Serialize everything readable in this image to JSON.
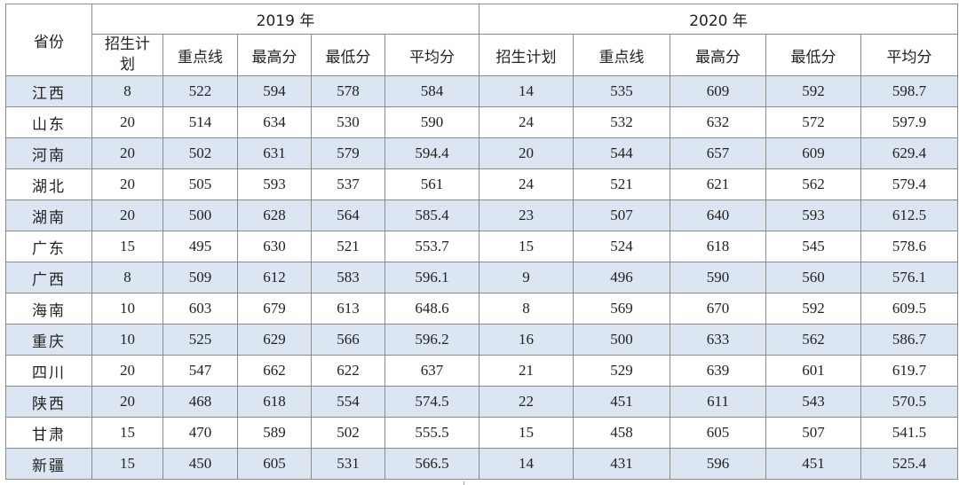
{
  "table": {
    "province_header": "省份",
    "years": [
      "2019 年",
      "2020 年"
    ],
    "columns_2019": [
      "招生计划",
      "重点线",
      "最高分",
      "最低分",
      "平均分"
    ],
    "columns_2020": [
      "招生计划",
      "重点线",
      "最高分",
      "最低分",
      "平均分"
    ],
    "row_shading_color": "#dce6f2",
    "rows": [
      {
        "province": "江西",
        "y2019": [
          "8",
          "522",
          "594",
          "578",
          "584"
        ],
        "y2020": [
          "14",
          "535",
          "609",
          "592",
          "598.7"
        ]
      },
      {
        "province": "山东",
        "y2019": [
          "20",
          "514",
          "634",
          "530",
          "590"
        ],
        "y2020": [
          "24",
          "532",
          "632",
          "572",
          "597.9"
        ]
      },
      {
        "province": "河南",
        "y2019": [
          "20",
          "502",
          "631",
          "579",
          "594.4"
        ],
        "y2020": [
          "20",
          "544",
          "657",
          "609",
          "629.4"
        ]
      },
      {
        "province": "湖北",
        "y2019": [
          "20",
          "505",
          "593",
          "537",
          "561"
        ],
        "y2020": [
          "24",
          "521",
          "621",
          "562",
          "579.4"
        ]
      },
      {
        "province": "湖南",
        "y2019": [
          "20",
          "500",
          "628",
          "564",
          "585.4"
        ],
        "y2020": [
          "23",
          "507",
          "640",
          "593",
          "612.5"
        ]
      },
      {
        "province": "广东",
        "y2019": [
          "15",
          "495",
          "630",
          "521",
          "553.7"
        ],
        "y2020": [
          "15",
          "524",
          "618",
          "545",
          "578.6"
        ]
      },
      {
        "province": "广西",
        "y2019": [
          "8",
          "509",
          "612",
          "583",
          "596.1"
        ],
        "y2020": [
          "9",
          "496",
          "590",
          "560",
          "576.1"
        ]
      },
      {
        "province": "海南",
        "y2019": [
          "10",
          "603",
          "679",
          "613",
          "648.6"
        ],
        "y2020": [
          "8",
          "569",
          "670",
          "592",
          "609.5"
        ]
      },
      {
        "province": "重庆",
        "y2019": [
          "10",
          "525",
          "629",
          "566",
          "596.2"
        ],
        "y2020": [
          "16",
          "500",
          "633",
          "562",
          "586.7"
        ]
      },
      {
        "province": "四川",
        "y2019": [
          "20",
          "547",
          "662",
          "622",
          "637"
        ],
        "y2020": [
          "21",
          "529",
          "639",
          "601",
          "619.7"
        ]
      },
      {
        "province": "陕西",
        "y2019": [
          "20",
          "468",
          "618",
          "554",
          "574.5"
        ],
        "y2020": [
          "22",
          "451",
          "611",
          "543",
          "570.5"
        ]
      },
      {
        "province": "甘肃",
        "y2019": [
          "15",
          "470",
          "589",
          "502",
          "555.5"
        ],
        "y2020": [
          "15",
          "458",
          "605",
          "507",
          "541.5"
        ]
      },
      {
        "province": "新疆",
        "y2019": [
          "15",
          "450",
          "605",
          "531",
          "566.5"
        ],
        "y2020": [
          "14",
          "431",
          "596",
          "451",
          "525.4"
        ]
      }
    ]
  }
}
